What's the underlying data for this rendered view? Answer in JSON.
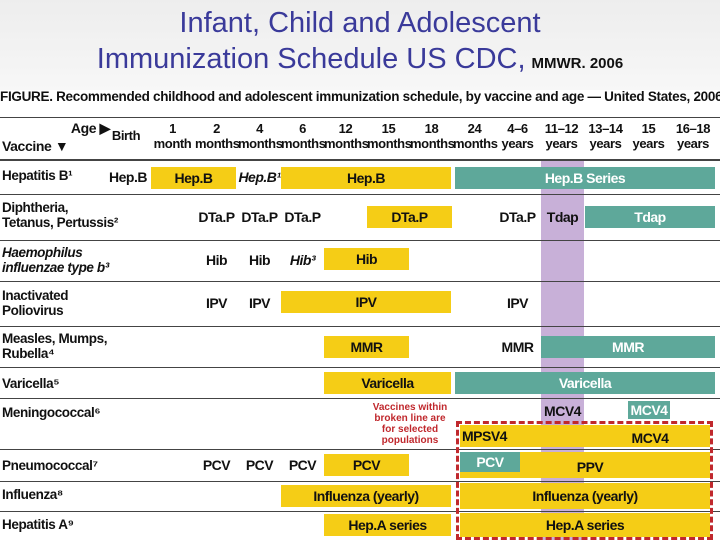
{
  "slide": {
    "title_line1": "Infant, Child and Adolescent",
    "title_line2": "Immunization Schedule US CDC,",
    "source": "MMWR. 2006"
  },
  "figure": {
    "caption": "FIGURE. Recommended childhood and adolescent immunization schedule, by vaccine and age — United States, 2006",
    "corner_age": "Age ▶",
    "corner_vaccine": "Vaccine ▼",
    "ages": [
      {
        "l1": "Birth",
        "l2": ""
      },
      {
        "l1": "1",
        "l2": "month"
      },
      {
        "l1": "2",
        "l2": "months"
      },
      {
        "l1": "4",
        "l2": "months"
      },
      {
        "l1": "6",
        "l2": "months"
      },
      {
        "l1": "12",
        "l2": "months"
      },
      {
        "l1": "15",
        "l2": "months"
      },
      {
        "l1": "18",
        "l2": "months"
      },
      {
        "l1": "24",
        "l2": "months"
      },
      {
        "l1": "4–6",
        "l2": "years"
      },
      {
        "l1": "11–12",
        "l2": "years"
      },
      {
        "l1": "13–14",
        "l2": "years"
      },
      {
        "l1": "15",
        "l2": "years"
      },
      {
        "l1": "16–18",
        "l2": "years"
      }
    ],
    "vaccines": [
      {
        "l1": "Hepatitis B¹",
        "l2": ""
      },
      {
        "l1": "Diphtheria,",
        "l2": "Tetanus, Pertussis²"
      },
      {
        "l1": "Haemophilus",
        "l2": "influenzae type b³"
      },
      {
        "l1": "Inactivated",
        "l2": "Poliovirus"
      },
      {
        "l1": "Measles, Mumps,",
        "l2": "Rubella⁴"
      },
      {
        "l1": "Varicella⁵",
        "l2": ""
      },
      {
        "l1": "Meningococcal⁶",
        "l2": ""
      },
      {
        "l1": "Pneumococcal⁷",
        "l2": ""
      },
      {
        "l1": "Influenza⁸",
        "l2": ""
      },
      {
        "l1": "Hepatitis A⁹",
        "l2": ""
      }
    ],
    "cells": {
      "hepb_birth": "Hep.B",
      "hepb_1m": "Hep.B",
      "hepb_4m": "Hep.B¹",
      "hepb_6_18": "Hep.B",
      "hepb_series": "Hep.B Series",
      "dtap_2m": "DTa.P",
      "dtap_4m": "DTa.P",
      "dtap_6m": "DTa.P",
      "dtap_15_18": "DTa.P",
      "dtap_4_6y": "DTa.P",
      "tdap_11_12": "Tdap",
      "tdap_13_18": "Tdap",
      "hib_2m": "Hib",
      "hib_4m": "Hib",
      "hib_6m": "Hib³",
      "hib_12_15": "Hib",
      "ipv_2m": "IPV",
      "ipv_4m": "IPV",
      "ipv_6_18": "IPV",
      "ipv_4_6y": "IPV",
      "mmr_12_15": "MMR",
      "mmr_4_6y": "MMR",
      "mmr_11_18": "MMR",
      "var_12_18": "Varicella",
      "var_24m_18y": "Varicella",
      "note": "Vaccines within broken line are for selected populations",
      "mcv4_11_12": "MCV4",
      "mcv4_15": "MCV4",
      "mpsv4": "MPSV4",
      "mcv4_sel": "MCV4",
      "pcv_2m": "PCV",
      "pcv_4m": "PCV",
      "pcv_6m": "PCV",
      "pcv_12_15": "PCV",
      "pcv_sel": "PCV",
      "ppv": "PPV",
      "flu_6_24": "Influenza (yearly)",
      "flu_older": "Influenza (yearly)",
      "hepa_12_24": "Hep.A series",
      "hepa_older": "Hep.A series"
    }
  },
  "colors": {
    "routine": "#f5cd16",
    "catch_up": "#5ea89a",
    "adolescent_band": "#c8b0d8",
    "selected_border": "#c0282d"
  }
}
